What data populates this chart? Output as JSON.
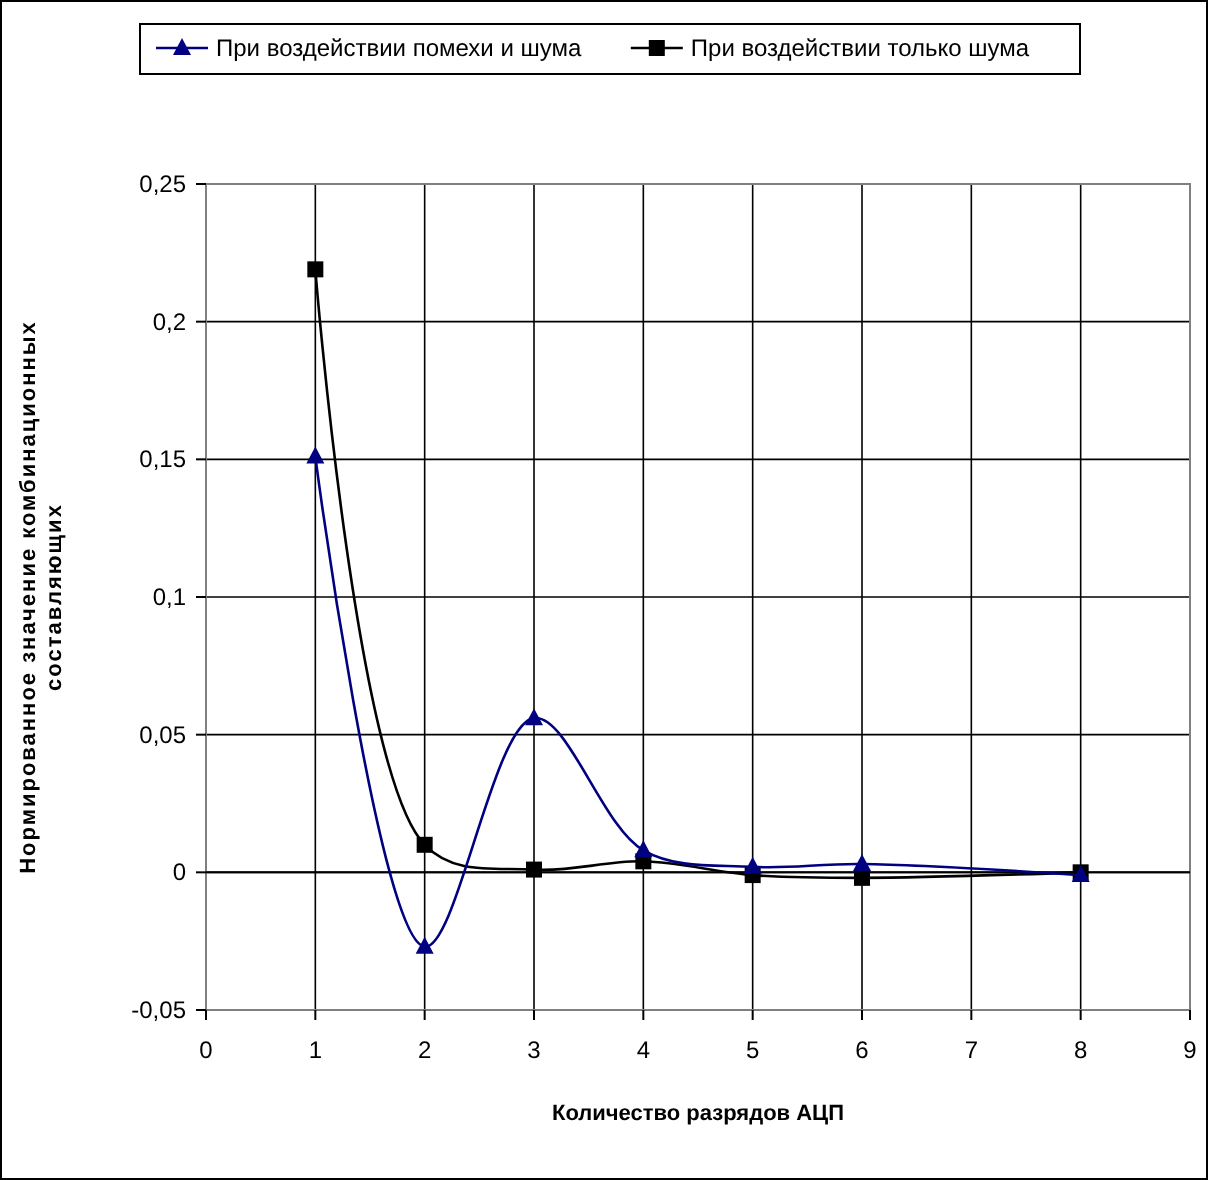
{
  "chart_data": {
    "type": "line",
    "xlabel": "Количество разрядов АЦП",
    "ylabel": "Нормированное значение комбинационных\nсоставляющих",
    "x": [
      1,
      2,
      3,
      4,
      5,
      6,
      8
    ],
    "series": [
      {
        "name": "При воздействии помехи и шума",
        "color": "#000080",
        "marker": "triangle",
        "values": [
          0.151,
          -0.027,
          0.056,
          0.008,
          0.002,
          0.003,
          -0.001
        ]
      },
      {
        "name": "При воздействии только шума",
        "color": "#000000",
        "marker": "square",
        "values": [
          0.219,
          0.01,
          0.001,
          0.004,
          -0.001,
          -0.002,
          0
        ]
      }
    ],
    "xlim": [
      0,
      9
    ],
    "xticks": [
      0,
      1,
      2,
      3,
      4,
      5,
      6,
      7,
      8,
      9
    ],
    "ylim": [
      -0.05,
      0.25
    ],
    "yticks": [
      {
        "value": -0.05,
        "label": "-0,05"
      },
      0,
      {
        "value": 0.05,
        "label": "0,05"
      },
      {
        "value": 0.1,
        "label": "0,1"
      },
      {
        "value": 0.15,
        "label": "0,15"
      },
      {
        "value": 0.2,
        "label": "0,2"
      },
      {
        "value": 0.25,
        "label": "0,25"
      }
    ],
    "grid": true,
    "legend": "top",
    "line_style": "solid"
  }
}
